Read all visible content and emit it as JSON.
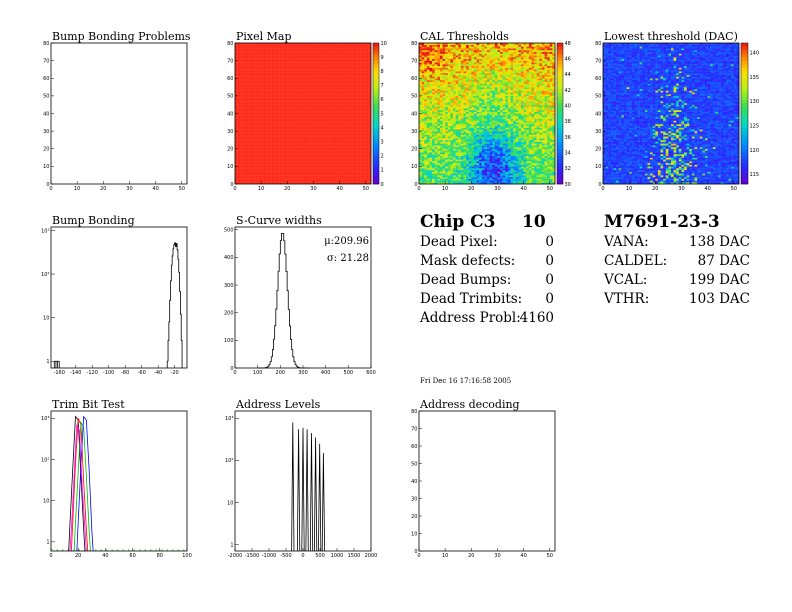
{
  "chart_data": [
    {
      "id": "bump_problems",
      "type": "heatmap",
      "title": "Bump Bonding Problems",
      "xlim": [
        0,
        52
      ],
      "ylim": [
        0,
        80
      ],
      "xticks": [
        "0",
        "10",
        "20",
        "30",
        "40",
        "50"
      ],
      "yticks": [
        "0",
        "10",
        "20",
        "30",
        "40",
        "50",
        "60",
        "70",
        "80"
      ],
      "z_description": "empty"
    },
    {
      "id": "pixel_map",
      "type": "heatmap",
      "title": "Pixel Map",
      "xlim": [
        0,
        52
      ],
      "ylim": [
        0,
        80
      ],
      "xticks": [
        "0",
        "10",
        "20",
        "30",
        "40",
        "50"
      ],
      "yticks": [
        "0",
        "10",
        "20",
        "30",
        "40",
        "50",
        "60",
        "70",
        "80"
      ],
      "zlim": [
        0,
        10
      ],
      "uniform_value": 10,
      "colorbar_ticks": [
        "0",
        "1",
        "2",
        "3",
        "4",
        "5",
        "6",
        "7",
        "8",
        "9",
        "10"
      ]
    },
    {
      "id": "cal_thresholds",
      "type": "heatmap",
      "title": "CAL Thresholds",
      "xlim": [
        0,
        52
      ],
      "ylim": [
        0,
        80
      ],
      "xticks": [
        "0",
        "10",
        "20",
        "30",
        "40",
        "50"
      ],
      "yticks": [
        "0",
        "10",
        "20",
        "30",
        "40",
        "50",
        "60",
        "70",
        "80"
      ],
      "zlim": [
        30,
        48
      ],
      "colorbar_ticks": [
        "30",
        "32",
        "34",
        "36",
        "38",
        "40",
        "42",
        "44",
        "46",
        "48"
      ]
    },
    {
      "id": "lowest_threshold",
      "type": "heatmap",
      "title": "Lowest threshold (DAC)",
      "xlim": [
        0,
        52
      ],
      "ylim": [
        0,
        80
      ],
      "xticks": [
        "0",
        "10",
        "20",
        "30",
        "40",
        "50"
      ],
      "yticks": [
        "0",
        "10",
        "20",
        "30",
        "40",
        "50",
        "60",
        "70",
        "80"
      ],
      "zlim": [
        113,
        142
      ],
      "colorbar_ticks": [
        "115",
        "120",
        "125",
        "130",
        "135",
        "140"
      ]
    },
    {
      "id": "bump_bonding",
      "type": "line",
      "title": "Bump Bonding",
      "xlim": [
        -170,
        -5
      ],
      "ylog": true,
      "ylim": [
        0.7,
        1200
      ],
      "xticks": [
        -160,
        -140,
        -120,
        -100,
        -80,
        -60,
        -40,
        -20
      ],
      "xtick_labels": [
        "-160",
        "-140",
        "-120",
        "-100",
        "-80",
        "-60",
        "-40",
        "-20"
      ],
      "yticks": [
        1,
        10,
        100,
        1000
      ],
      "ytick_labels": [
        "1",
        "10",
        "10²",
        "10³"
      ],
      "series": [
        {
          "x": [
            -166,
            -160,
            -28,
            -26,
            -24,
            -22,
            -20,
            -18,
            -16,
            -14,
            -12
          ],
          "y": [
            1,
            1,
            5,
            40,
            200,
            350,
            500,
            380,
            150,
            30,
            3
          ]
        }
      ]
    },
    {
      "id": "scurve_widths",
      "type": "line",
      "title": "S-Curve widths",
      "xlim": [
        0,
        600
      ],
      "ylim": [
        0,
        510
      ],
      "xticks": [
        0,
        100,
        200,
        300,
        400,
        500,
        600
      ],
      "xtick_labels": [
        "0",
        "100",
        "200",
        "300",
        "400",
        "500",
        "600"
      ],
      "yticks": [
        0,
        100,
        200,
        300,
        400,
        500
      ],
      "ytick_labels": [
        "0",
        "100",
        "200",
        "300",
        "400",
        "500"
      ],
      "mean_label": "μ:209.96",
      "sigma_label": "σ: 21.28",
      "mean": 209.96,
      "sigma": 21.28,
      "peak": 490
    },
    {
      "id": "trim_bit_test",
      "type": "line",
      "title": "Trim Bit Test",
      "xlim": [
        0,
        100
      ],
      "ylog": true,
      "ylim": [
        0.6,
        1500
      ],
      "xticks": [
        0,
        20,
        40,
        60,
        80,
        100
      ],
      "xtick_labels": [
        "0",
        "20",
        "40",
        "60",
        "80",
        "100"
      ],
      "yticks": [
        1,
        10,
        100,
        1000
      ],
      "ytick_labels": [
        "1",
        "10",
        "10²",
        "10³"
      ],
      "series": [
        {
          "color": "#000000",
          "x": [
            14,
            16,
            18,
            20,
            22,
            24
          ],
          "y": [
            3,
            60,
            1100,
            900,
            40,
            2
          ]
        },
        {
          "color": "#ff0000",
          "x": [
            16,
            18,
            20,
            22,
            24,
            26
          ],
          "y": [
            3,
            80,
            1000,
            700,
            30,
            2
          ]
        },
        {
          "color": "#00bb00",
          "x": [
            18,
            20,
            22,
            24,
            26,
            28
          ],
          "y": [
            3,
            50,
            800,
            600,
            40,
            2
          ]
        },
        {
          "color": "#0000ff",
          "x": [
            20,
            22,
            24,
            26,
            28,
            30
          ],
          "y": [
            3,
            70,
            1100,
            900,
            60,
            2
          ]
        },
        {
          "color": "#ff00ff",
          "x": [
            15,
            17,
            19,
            21,
            23,
            25
          ],
          "y": [
            2,
            40,
            700,
            500,
            20,
            2
          ]
        }
      ]
    },
    {
      "id": "address_levels",
      "type": "line",
      "title": "Address Levels",
      "xlim": [
        -2000,
        2000
      ],
      "ylog": true,
      "ylim": [
        0.7,
        1500
      ],
      "xticks": [
        -2000,
        -1500,
        -1000,
        -500,
        0,
        500,
        1000,
        1500,
        2000
      ],
      "xtick_labels": [
        "-2000",
        "-1500",
        "-1000",
        "-500",
        "0",
        "500",
        "1000",
        "1500",
        "2000"
      ],
      "yticks": [
        1,
        10,
        100,
        1000
      ],
      "ytick_labels": [
        "1",
        "10",
        "10²",
        "10³"
      ],
      "peaks": [
        {
          "x": -300,
          "y": 800
        },
        {
          "x": -130,
          "y": 550
        },
        {
          "x": 0,
          "y": 600
        },
        {
          "x": 120,
          "y": 550
        },
        {
          "x": 250,
          "y": 450
        },
        {
          "x": 370,
          "y": 350
        },
        {
          "x": 490,
          "y": 250
        },
        {
          "x": 600,
          "y": 150
        }
      ]
    },
    {
      "id": "address_decoding",
      "type": "heatmap",
      "title": "Address decoding",
      "xlim": [
        0,
        52
      ],
      "ylim": [
        0,
        80
      ],
      "xticks": [
        "0",
        "10",
        "20",
        "30",
        "40",
        "50"
      ],
      "yticks": [
        "0",
        "10",
        "20",
        "30",
        "40",
        "50",
        "60",
        "70",
        "80"
      ],
      "z_description": "empty"
    }
  ],
  "summary": {
    "chip_label": "Chip C3",
    "chip_value": "10",
    "rows": [
      {
        "label": "Dead Pixel:",
        "value": "0"
      },
      {
        "label": "Mask defects:",
        "value": "0"
      },
      {
        "label": "Dead Bumps:",
        "value": "0"
      },
      {
        "label": "Dead Trimbits:",
        "value": "0"
      },
      {
        "label": "Address Probl:",
        "value": "4160"
      }
    ],
    "date": "Fri Dec 16 17:16:58 2005"
  },
  "module": {
    "name": "M7691-23-3",
    "rows": [
      {
        "label": "VANA:",
        "value": "138 DAC"
      },
      {
        "label": "CALDEL:",
        "value": "87 DAC"
      },
      {
        "label": "VCAL:",
        "value": "199 DAC"
      },
      {
        "label": "VTHR:",
        "value": "103 DAC"
      }
    ]
  },
  "colors": {
    "pixel_map_fill": "#ff2a1a",
    "axis": "#000000"
  }
}
